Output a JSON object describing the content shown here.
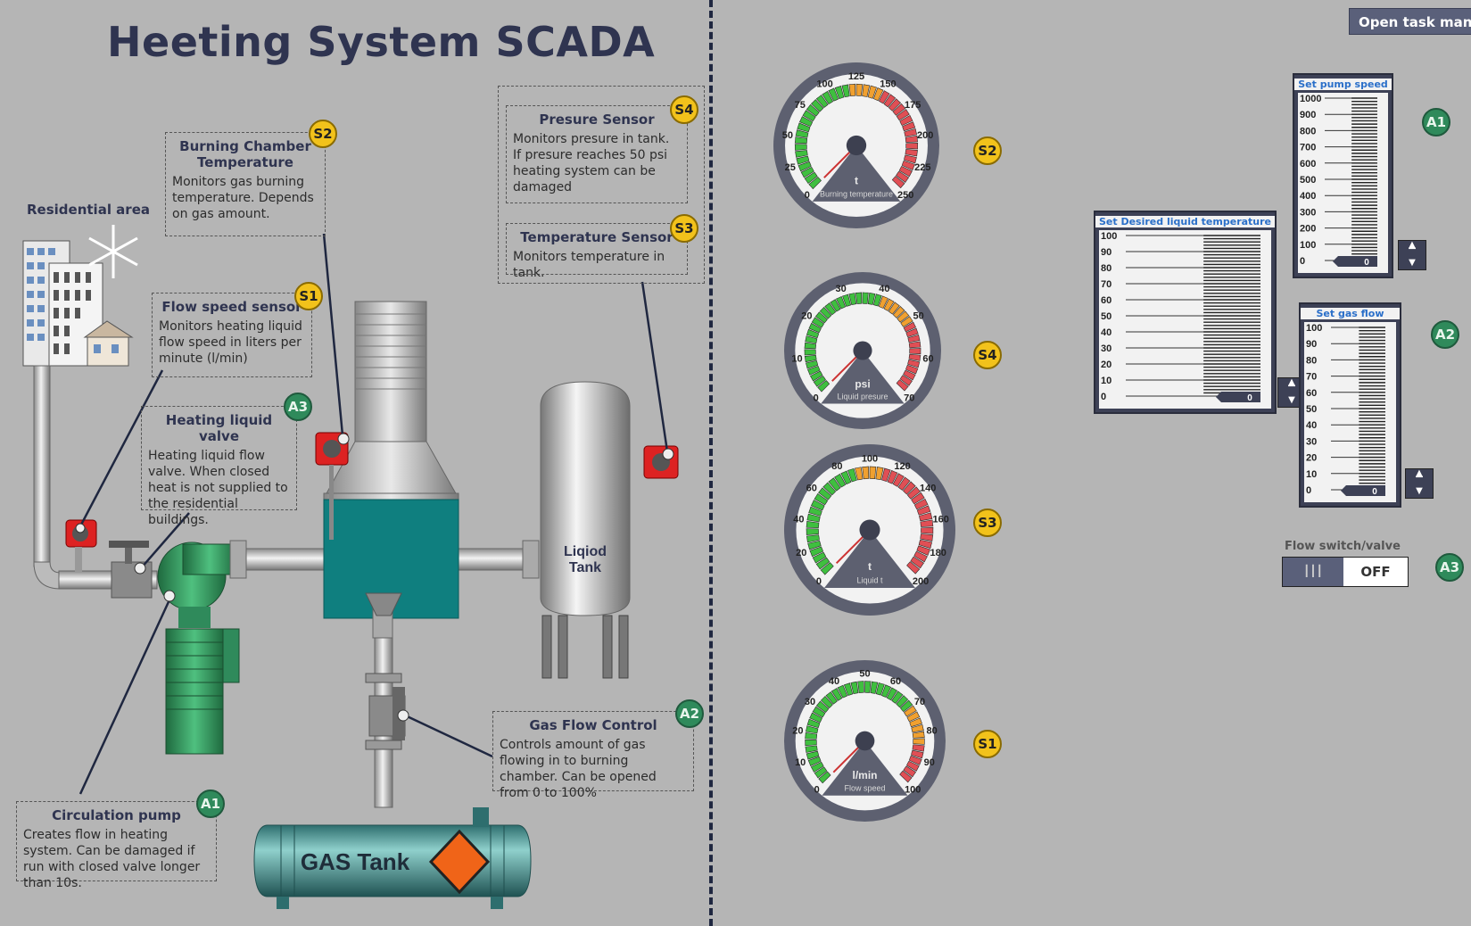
{
  "title": "Heeting System SCADA",
  "task_button": "Open task manag",
  "diagram": {
    "residential_label": "Residential area",
    "liquid_tank_label": "Liqiod\nTank",
    "gas_tank_label": "GAS Tank"
  },
  "notes": {
    "s2": {
      "title": "Burning Chamber Temperature",
      "text": "Monitors gas burning temperature. Depends on gas amount."
    },
    "s4": {
      "title": "Presure Sensor",
      "text": "Monitors presure in tank. If presure reaches 50 psi heating system can be damaged"
    },
    "s3": {
      "title": "Temperature Sensor",
      "text": "Monitors temperature in tank."
    },
    "s1": {
      "title": "Flow speed sensor",
      "text": "Monitors heating liquid flow speed in liters per minute (l/min)"
    },
    "a3": {
      "title": "Heating liquid valve",
      "text": "Heating liquid flow valve. When closed heat is not supplied to the residential buildings."
    },
    "a2": {
      "title": "Gas Flow Control",
      "text": "Controls amount of gas flowing in to burning chamber. Can be opened from 0 to 100%"
    },
    "a1": {
      "title": "Circulation pump",
      "text": "Creates flow in heating system. Can be damaged if run with closed valve longer than 10s."
    }
  },
  "badges": {
    "s1": "S1",
    "s2": "S2",
    "s3": "S3",
    "s4": "S4",
    "a1": "A1",
    "a2": "A2",
    "a3": "A3"
  },
  "gauges": [
    {
      "id": "g1",
      "badge": "S2",
      "unit": "t",
      "label": "Burning temperature",
      "min": 0,
      "max": 250,
      "ticks": [
        "0",
        "25",
        "50",
        "75",
        "100",
        "125",
        "150",
        "175",
        "200",
        "225",
        "250"
      ],
      "green_to": 120,
      "orange_to": 150,
      "value": 0
    },
    {
      "id": "g2",
      "badge": "S4",
      "unit": "psi",
      "label": "Liquid presure",
      "min": 0,
      "max": 70,
      "ticks": [
        "0",
        "10",
        "20",
        "30",
        "40",
        "50",
        "60",
        "70"
      ],
      "green_to": 40,
      "orange_to": 50,
      "value": 0
    },
    {
      "id": "g3",
      "badge": "S3",
      "unit": "t",
      "label": "Liquid t",
      "min": 0,
      "max": 200,
      "ticks": [
        "0",
        "20",
        "40",
        "60",
        "80",
        "100",
        "120",
        "140",
        "160",
        "180",
        "200"
      ],
      "green_to": 90,
      "orange_to": 110,
      "value": 0
    },
    {
      "id": "g4",
      "badge": "S1",
      "unit": "l/min",
      "label": "Flow speed",
      "min": 0,
      "max": 100,
      "ticks": [
        "0",
        "10",
        "20",
        "30",
        "40",
        "50",
        "60",
        "70",
        "80",
        "90",
        "100"
      ],
      "green_to": 70,
      "orange_to": 85,
      "value": 0
    }
  ],
  "sliders": [
    {
      "id": "pump",
      "title": "Set pump speed",
      "badge": "A1",
      "ticks": [
        "1000",
        "900",
        "800",
        "700",
        "600",
        "500",
        "400",
        "300",
        "200",
        "100",
        "0"
      ],
      "value": "0"
    },
    {
      "id": "temp",
      "title": "Set Desired liquid temperature",
      "ticks": [
        "100",
        "90",
        "80",
        "70",
        "60",
        "50",
        "40",
        "30",
        "20",
        "10",
        "0"
      ],
      "value": "0"
    },
    {
      "id": "gas",
      "title": "Set gas flow",
      "badge": "A2",
      "ticks": [
        "100",
        "90",
        "80",
        "70",
        "60",
        "50",
        "40",
        "30",
        "20",
        "10",
        "0"
      ],
      "value": "0"
    }
  ],
  "switch": {
    "label": "Flow switch/valve",
    "state": "OFF",
    "knob": "┃┃┃",
    "badge": "A3"
  },
  "colors": {
    "background": "#b5b5b5",
    "badge_yellow": "#f2c21b",
    "badge_green": "#2f8a5b",
    "gauge_green": "#3fbf3f",
    "gauge_orange": "#f0a030",
    "gauge_red": "#e04f55",
    "teal": "#0f7f7f"
  }
}
